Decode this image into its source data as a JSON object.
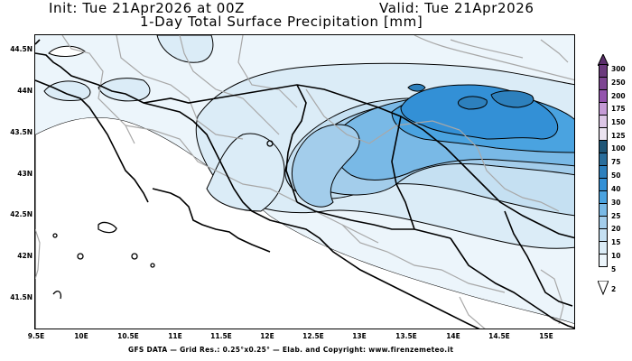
{
  "header": {
    "init": "Init: Tue 21Apr2026 at 00Z",
    "valid": "Valid: Tue 21Apr2026",
    "title": "1-Day Total Surface Precipitation [mm]"
  },
  "axes": {
    "lat_labels": [
      "44.5N",
      "44N",
      "43.5N",
      "43N",
      "42.5N",
      "42N",
      "41.5N"
    ],
    "lon_labels": [
      "9.5E",
      "10E",
      "10.5E",
      "11E",
      "11.5E",
      "12E",
      "12.5E",
      "13E",
      "13.5E",
      "14E",
      "14.5E",
      "15E"
    ]
  },
  "colorbar": {
    "labels": [
      "300",
      "250",
      "200",
      "175",
      "150",
      "125",
      "100",
      "75",
      "50",
      "40",
      "30",
      "25",
      "20",
      "15",
      "10",
      "5",
      "2"
    ],
    "colors_top_to_bottom": [
      "#6b3a7d",
      "#7d4592",
      "#9454ad",
      "#c59bd6",
      "#dcc6e6",
      "#ebe3f0",
      "#1f5677",
      "#2a6e9c",
      "#2d80bd",
      "#3390d6",
      "#4aa3e0",
      "#79b9e6",
      "#a3cdeb",
      "#c5e0f2",
      "#dbecf7",
      "#ecf5fb"
    ],
    "over_arrow_color": "#5b2e6c",
    "under_arrow_color": "#ffffff"
  },
  "footer": {
    "credit": "GFS DATA — Grid Res.: 0.25°x0.25° — Elab. and Copyright: www.firenzemeteo.it"
  },
  "map": {
    "region": "Central Italy",
    "max_precip_area": "Central Adriatic Sea near 14-14.5E, 43.7N",
    "fill_colors": {
      "lt2": "#ffffff",
      "2_5": "#ecf5fb",
      "5_10": "#dbecf7",
      "10_15": "#c5e0f2",
      "15_20": "#a3cdeb",
      "20_25": "#79b9e6",
      "25_30": "#4aa3e0",
      "30_40": "#3390d6"
    }
  }
}
